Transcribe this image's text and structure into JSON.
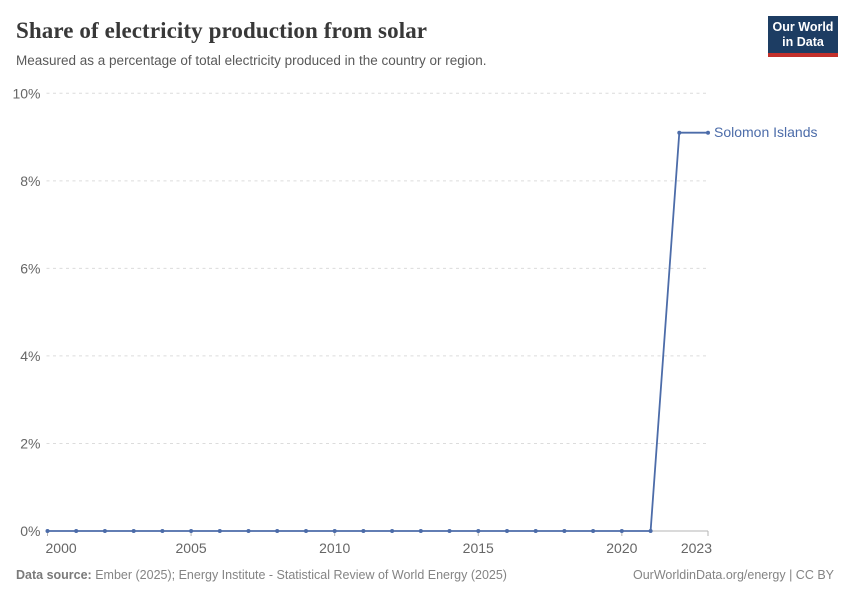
{
  "header": {
    "title": "Share of electricity production from solar",
    "subtitle": "Measured as a percentage of total electricity produced in the country or region."
  },
  "logo": {
    "line1": "Our World",
    "line2": "in Data",
    "bg_color": "#1d3d63",
    "accent_color": "#c3302b",
    "text_color": "#ffffff"
  },
  "footer": {
    "source_label": "Data source:",
    "source_text": "Ember (2025); Energy Institute - Statistical Review of World Energy (2025)",
    "credit": "OurWorldinData.org/energy | CC BY"
  },
  "chart_data": {
    "type": "line",
    "title": "Share of electricity production from solar",
    "xlabel": "",
    "ylabel": "",
    "xlim": [
      2000,
      2023
    ],
    "ylim": [
      0,
      10
    ],
    "x_ticks": [
      2000,
      2005,
      2010,
      2015,
      2020,
      2023
    ],
    "y_ticks": [
      0,
      2,
      4,
      6,
      8,
      10
    ],
    "y_tick_suffix": "%",
    "grid": "horizontal-dashed",
    "markers": true,
    "legend_position": "end-of-line",
    "colors": {
      "grid": "#dcdcdc",
      "axis": "#b5b5b5",
      "tick_label": "#666666"
    },
    "series": [
      {
        "name": "Solomon Islands",
        "color": "#4c6ca9",
        "x": [
          2000,
          2001,
          2002,
          2003,
          2004,
          2005,
          2006,
          2007,
          2008,
          2009,
          2010,
          2011,
          2012,
          2013,
          2014,
          2015,
          2016,
          2017,
          2018,
          2019,
          2020,
          2021,
          2022,
          2023
        ],
        "values": [
          0,
          0,
          0,
          0,
          0,
          0,
          0,
          0,
          0,
          0,
          0,
          0,
          0,
          0,
          0,
          0,
          0,
          0,
          0,
          0,
          0,
          0,
          9.1,
          9.1
        ]
      }
    ]
  }
}
